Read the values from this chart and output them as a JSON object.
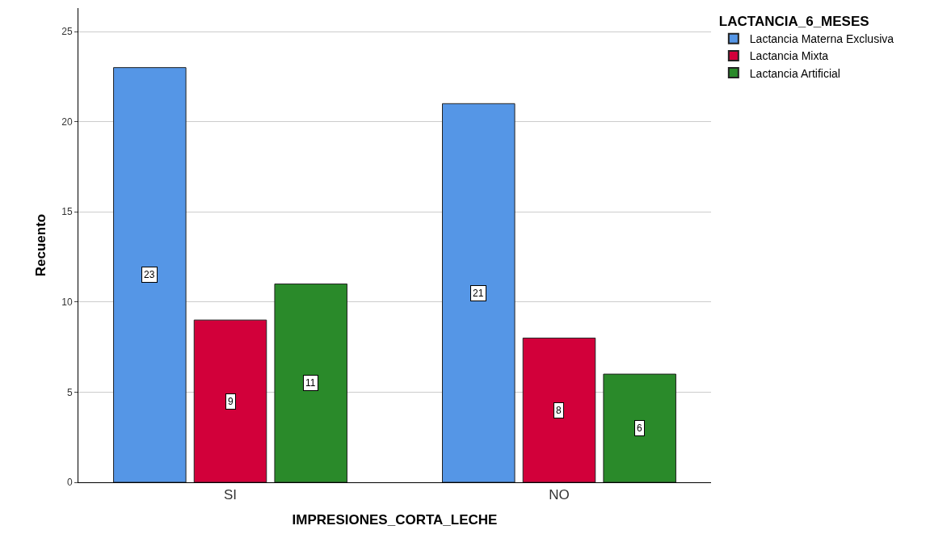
{
  "chart_data": {
    "type": "bar",
    "xlabel": "IMPRESIONES_CORTA_LECHE",
    "ylabel": "Recuento",
    "legend_title": "LACTANCIA_6_MESES",
    "categories": [
      "SI",
      "NO"
    ],
    "series": [
      {
        "name": "Lactancia Materna Exclusiva",
        "color": "#5596e6",
        "values": [
          23,
          21
        ]
      },
      {
        "name": "Lactancia Mixta",
        "color": "#d2003a",
        "values": [
          9,
          8
        ]
      },
      {
        "name": "Lactancia Artificial",
        "color": "#2a8a2a",
        "values": [
          11,
          6
        ]
      }
    ],
    "ylim": [
      0,
      26.3
    ],
    "yticks": [
      0,
      5,
      10,
      15,
      20,
      25
    ],
    "grid": "y",
    "legend": "top right",
    "data_labels": true
  }
}
